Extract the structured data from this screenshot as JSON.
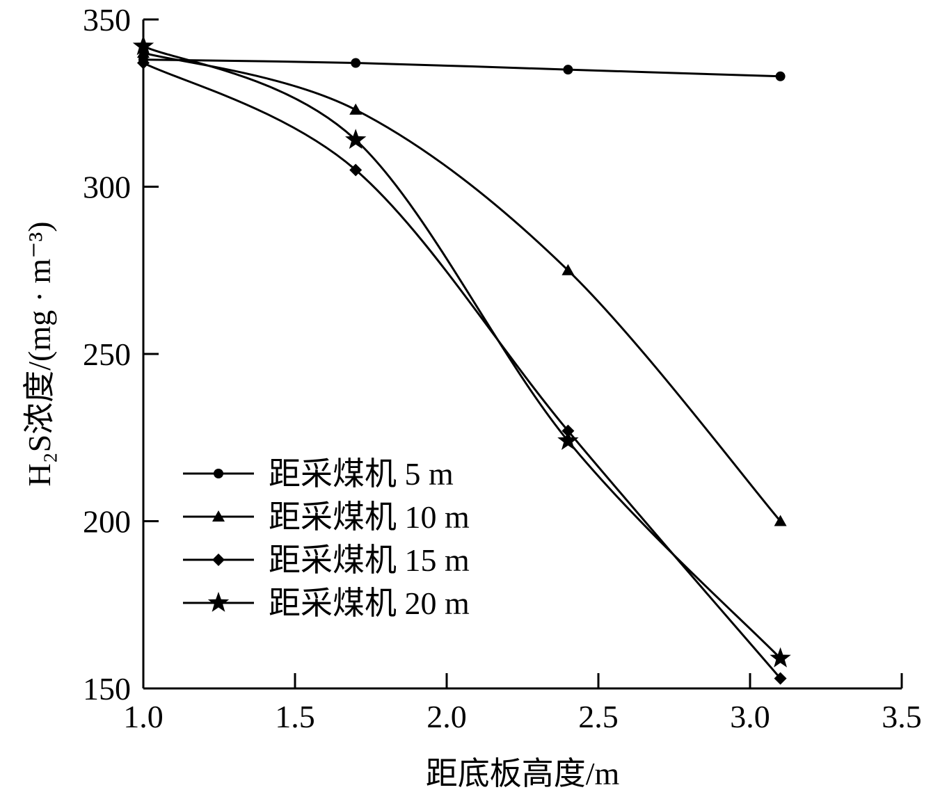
{
  "chart_data": {
    "type": "line",
    "xlabel": "距底板高度/m",
    "ylabel": "H₂S浓度/(mg · m⁻³)",
    "xlim": [
      1.0,
      3.5
    ],
    "ylim": [
      150,
      350
    ],
    "xticks": [
      "1.0",
      "1.5",
      "2.0",
      "2.5",
      "3.0",
      "3.5"
    ],
    "yticks": [
      "150",
      "200",
      "250",
      "300",
      "350"
    ],
    "legend_position": "lower-left",
    "grid": false,
    "x": [
      1.0,
      1.7,
      2.4,
      3.1
    ],
    "series": [
      {
        "name": "距采煤机 5 m",
        "marker": "circle",
        "values": [
          338,
          337,
          335,
          333
        ]
      },
      {
        "name": "距采煤机 10 m",
        "marker": "triangle",
        "values": [
          340,
          323,
          275,
          200
        ]
      },
      {
        "name": "距采煤机 15 m",
        "marker": "diamond",
        "values": [
          337,
          305,
          227,
          153
        ]
      },
      {
        "name": "距采煤机 20 m",
        "marker": "star",
        "values": [
          342,
          314,
          224,
          159
        ]
      }
    ]
  }
}
